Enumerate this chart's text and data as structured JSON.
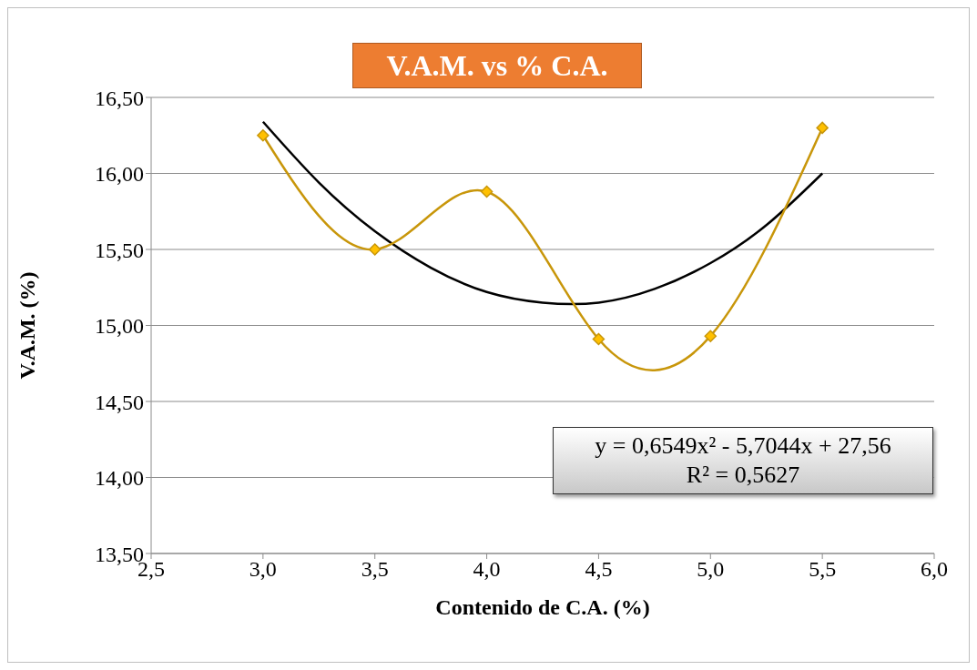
{
  "chart_data": {
    "type": "line",
    "title": "V.A.M. vs % C.A.",
    "xlabel": "Contenido de C.A. (%)",
    "ylabel": "V.A.M. (%)",
    "xlim": [
      2.5,
      6.0
    ],
    "xticks": [
      {
        "value": 2.5,
        "label": "2,5"
      },
      {
        "value": 3,
        "label": "3,0"
      },
      {
        "value": 3.5,
        "label": "3,5"
      },
      {
        "value": 4,
        "label": "4,0"
      },
      {
        "value": 4.5,
        "label": "4,5"
      },
      {
        "value": 5,
        "label": "5,0"
      },
      {
        "value": 5.5,
        "label": "5,5"
      },
      {
        "value": 6,
        "label": "6,0"
      }
    ],
    "ylim": [
      13.5,
      16.5
    ],
    "yticks": [
      {
        "value": 13.5,
        "label": "13,50"
      },
      {
        "value": 14,
        "label": "14,00"
      },
      {
        "value": 14.5,
        "label": "14,50"
      },
      {
        "value": 15,
        "label": "15,00"
      },
      {
        "value": 15.5,
        "label": "15,50"
      },
      {
        "value": 16,
        "label": "16,00"
      },
      {
        "value": 16.5,
        "label": "16,50"
      }
    ],
    "grid": "y",
    "series": [
      {
        "color": "#c8960a",
        "marker": "diamond",
        "x": [
          3.0,
          3.5,
          4.0,
          4.5,
          5.0,
          5.5
        ],
        "values": [
          16.25,
          15.5,
          15.88,
          14.91,
          14.93,
          16.3
        ]
      },
      {
        "color": "#000000",
        "marker": "none",
        "x": [
          3.0,
          3.25,
          3.5,
          3.75,
          4.0,
          4.25,
          4.5,
          4.75,
          5.0,
          5.25,
          5.5
        ],
        "values": [
          16.34,
          15.94,
          15.62,
          15.38,
          15.22,
          15.15,
          15.15,
          15.24,
          15.41,
          15.66,
          16.0
        ]
      }
    ],
    "annotations": [
      "y = 0,6549x² - 5,7044x + 27,56",
      "R² = 0,5627"
    ]
  }
}
